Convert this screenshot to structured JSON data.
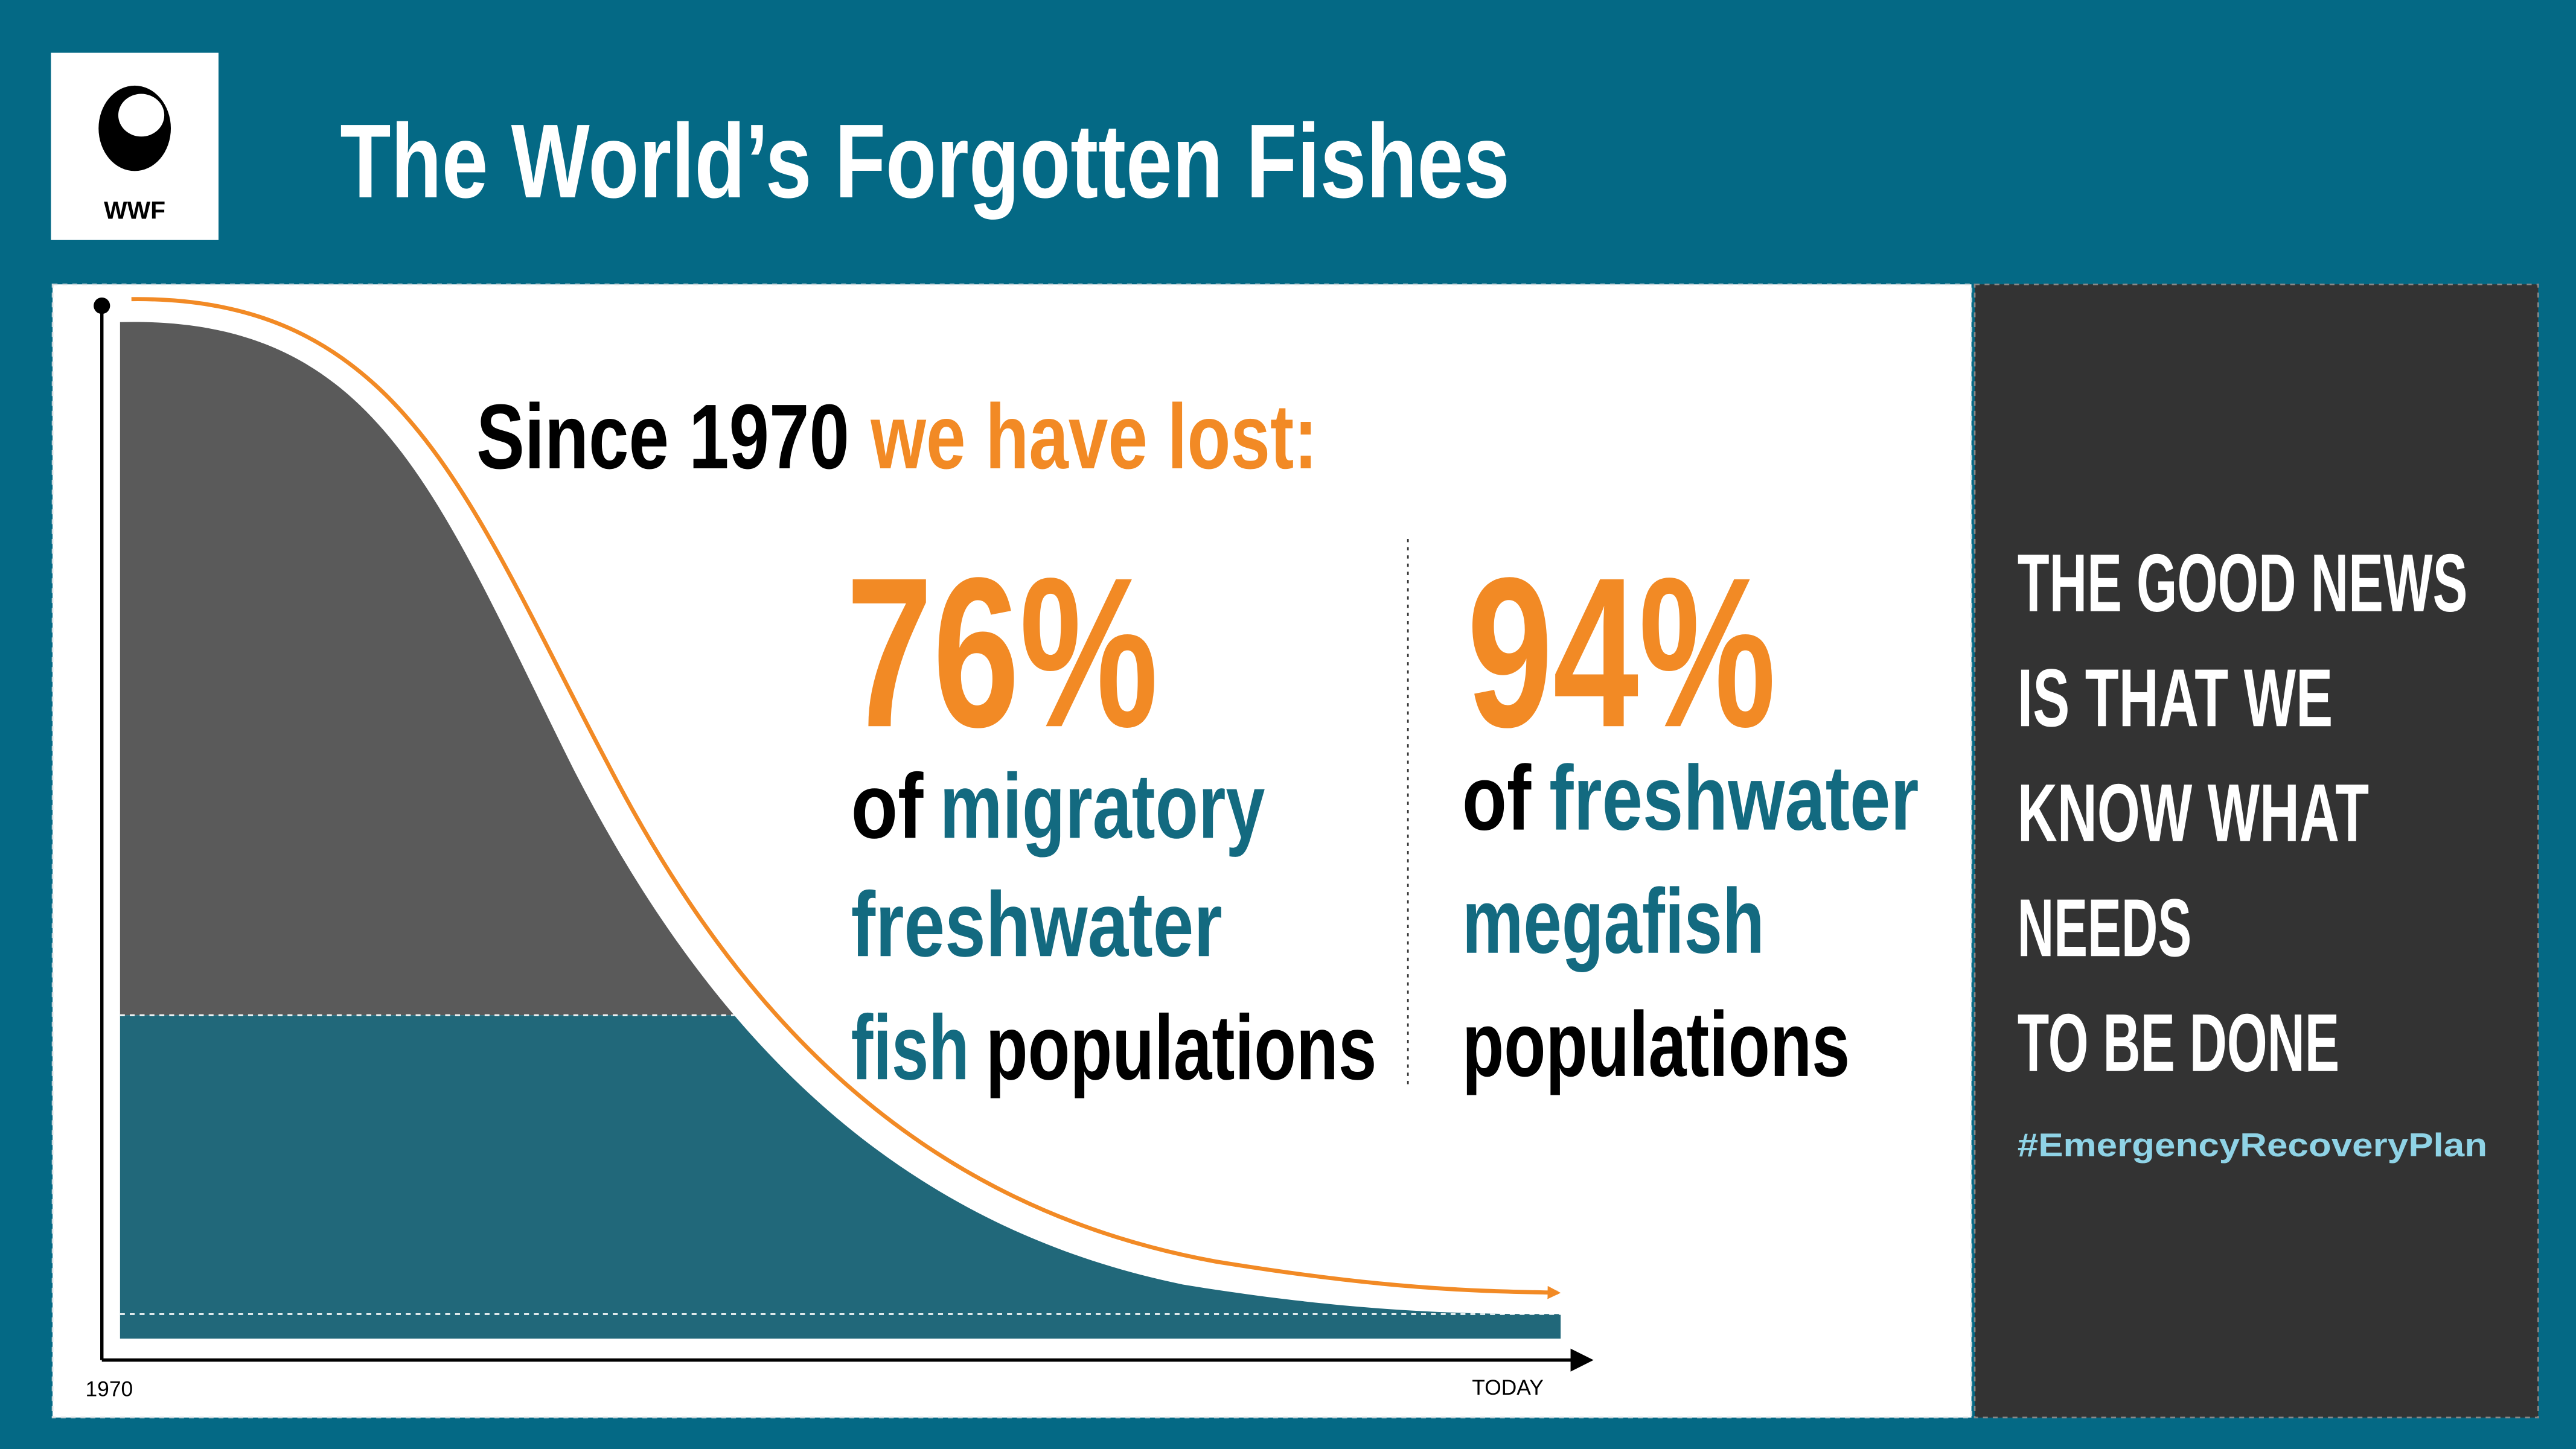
{
  "logo": {
    "label": "WWF"
  },
  "header": {
    "title": "The World’s Forgotten Fishes"
  },
  "headline": {
    "lead": "Since 1970",
    "accent": "we have lost:"
  },
  "stats": [
    {
      "percent": "76%",
      "lines": [
        [
          "of",
          "migratory"
        ],
        [
          "freshwater"
        ],
        [
          "fish",
          "populations"
        ]
      ]
    },
    {
      "percent": "94%",
      "lines": [
        [
          "of",
          "freshwater"
        ],
        [
          "megafish"
        ],
        [
          "populations"
        ]
      ]
    }
  ],
  "side": {
    "lines": [
      "THE GOOD NEWS",
      "IS THAT WE",
      "KNOW WHAT",
      "NEEDS",
      "TO BE DONE"
    ],
    "hashtag": "#EmergencyRecoveryPlan"
  },
  "axis": {
    "start": "1970",
    "end": "TODAY"
  }
}
